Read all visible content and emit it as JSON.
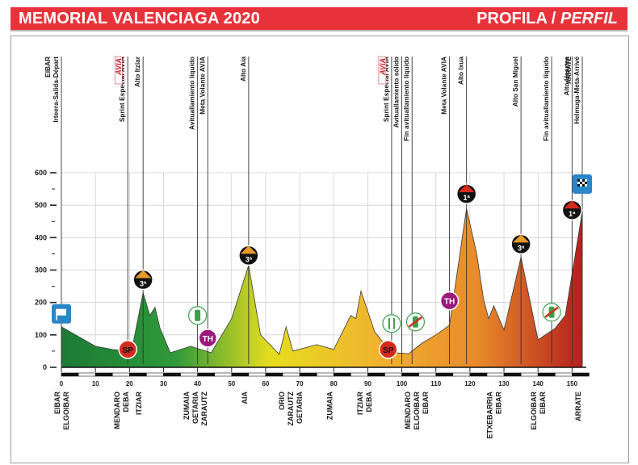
{
  "header": {
    "title": "MEMORIAL VALENCIAGA 2020",
    "right_main": "PROFILA / ",
    "right_italic": "PERFIL"
  },
  "chart_data": {
    "type": "area",
    "title": "MEMORIAL VALENCIAGA 2020",
    "xlabel": "",
    "ylabel": "",
    "xlim": [
      0,
      152
    ],
    "ylim": [
      0,
      600
    ],
    "x_ticks": [
      0,
      10,
      20,
      30,
      40,
      50,
      60,
      70,
      80,
      90,
      100,
      110,
      120,
      130,
      140,
      150
    ],
    "y_ticks": [
      0,
      100,
      200,
      300,
      400,
      500,
      600
    ],
    "grid": true,
    "profile": [
      {
        "x": 0,
        "y": 125
      },
      {
        "x": 5,
        "y": 95
      },
      {
        "x": 10,
        "y": 65
      },
      {
        "x": 15,
        "y": 55
      },
      {
        "x": 18,
        "y": 52
      },
      {
        "x": 21,
        "y": 70
      },
      {
        "x": 24,
        "y": 230
      },
      {
        "x": 26,
        "y": 160
      },
      {
        "x": 27.5,
        "y": 185
      },
      {
        "x": 29,
        "y": 120
      },
      {
        "x": 32,
        "y": 45
      },
      {
        "x": 38,
        "y": 65
      },
      {
        "x": 44,
        "y": 45
      },
      {
        "x": 50,
        "y": 150
      },
      {
        "x": 55,
        "y": 315
      },
      {
        "x": 58.5,
        "y": 100
      },
      {
        "x": 64,
        "y": 40
      },
      {
        "x": 66,
        "y": 125
      },
      {
        "x": 68,
        "y": 50
      },
      {
        "x": 75,
        "y": 70
      },
      {
        "x": 80,
        "y": 55
      },
      {
        "x": 85,
        "y": 160
      },
      {
        "x": 86.5,
        "y": 150
      },
      {
        "x": 88,
        "y": 235
      },
      {
        "x": 92,
        "y": 110
      },
      {
        "x": 95,
        "y": 70
      },
      {
        "x": 98,
        "y": 45
      },
      {
        "x": 102,
        "y": 42
      },
      {
        "x": 106,
        "y": 75
      },
      {
        "x": 110,
        "y": 100
      },
      {
        "x": 114,
        "y": 130
      },
      {
        "x": 119,
        "y": 490
      },
      {
        "x": 122,
        "y": 350
      },
      {
        "x": 124,
        "y": 210
      },
      {
        "x": 125.5,
        "y": 150
      },
      {
        "x": 127,
        "y": 190
      },
      {
        "x": 130,
        "y": 115
      },
      {
        "x": 135,
        "y": 340
      },
      {
        "x": 140,
        "y": 85
      },
      {
        "x": 145,
        "y": 120
      },
      {
        "x": 148,
        "y": 160
      },
      {
        "x": 153,
        "y": 480
      }
    ],
    "top_annotations": [
      {
        "km": 0,
        "lines": [
          "EIBAR",
          "Irteera-Salida-Départ"
        ]
      },
      {
        "km": 19.5,
        "lines": [
          "Sprint Especial AVIA"
        ],
        "logo": "AVIA"
      },
      {
        "km": 24,
        "lines": [
          "Alto Itziar"
        ]
      },
      {
        "km": 40,
        "lines": [
          "Avituallamiento líquido"
        ]
      },
      {
        "km": 43,
        "lines": [
          "Meta Volante AVIA"
        ]
      },
      {
        "km": 55,
        "lines": [
          "Alto Aia"
        ]
      },
      {
        "km": 97,
        "lines": [
          "Sprint Especial AVIA"
        ],
        "logo": "AVIA"
      },
      {
        "km": 100,
        "lines": [
          "Avituallamiento sólido"
        ]
      },
      {
        "km": 103,
        "lines": [
          "Fin avituallamiento líquido"
        ]
      },
      {
        "km": 114,
        "lines": [
          "Meta Volante AVIA"
        ]
      },
      {
        "km": 119,
        "lines": [
          "Alto Ixua"
        ]
      },
      {
        "km": 135,
        "lines": [
          "Alto San Miguel"
        ]
      },
      {
        "km": 144,
        "lines": [
          "Fin avituallamiento líquido"
        ]
      },
      {
        "km": 150,
        "lines": [
          "Alto Usartza"
        ]
      },
      {
        "km": 153,
        "lines": [
          "ARRATE",
          "Helmuga-Meta-Arrivé"
        ]
      }
    ],
    "bottom_places": [
      {
        "km": 0,
        "lines": [
          "EIBAR",
          "ELGOIBAR"
        ]
      },
      {
        "km": 17.5,
        "lines": [
          "MENDARO",
          "DEBA"
        ]
      },
      {
        "km": 24,
        "lines": [
          "ITZIAR"
        ]
      },
      {
        "km": 38,
        "lines": [
          "ZUMAIA",
          "GETARIA",
          "ZARAUTZ"
        ]
      },
      {
        "km": 55,
        "lines": [
          "AIA"
        ]
      },
      {
        "km": 66,
        "lines": [
          "ORIO",
          "ZARAUTZ",
          "GETARIA"
        ]
      },
      {
        "km": 80,
        "lines": [
          "ZUMAIA"
        ]
      },
      {
        "km": 89,
        "lines": [
          "ITZIAR",
          "DEBA"
        ]
      },
      {
        "km": 103,
        "lines": [
          "MENDARO",
          "ELGOIBAR",
          "EIBAR"
        ]
      },
      {
        "km": 127,
        "lines": [
          "ETXEBARRIA",
          "EIBAR"
        ]
      },
      {
        "km": 140,
        "lines": [
          "ELGOIBAR",
          "EIBAR"
        ]
      },
      {
        "km": 153,
        "lines": [
          "ARRATE"
        ]
      }
    ],
    "markers": [
      {
        "km": 0,
        "alt": 165,
        "type": "start-flag"
      },
      {
        "km": 19.5,
        "alt": 55,
        "type": "sprint",
        "label": "SP"
      },
      {
        "km": 24,
        "alt": 270,
        "type": "climb-3",
        "label": "3ª"
      },
      {
        "km": 40,
        "alt": 160,
        "type": "bottle"
      },
      {
        "km": 43,
        "alt": 90,
        "type": "intermediate",
        "label": "TH"
      },
      {
        "km": 55,
        "alt": 345,
        "type": "climb-3",
        "label": "3ª"
      },
      {
        "km": 96,
        "alt": 55,
        "type": "sprint",
        "label": "SP"
      },
      {
        "km": 97,
        "alt": 135,
        "type": "food"
      },
      {
        "km": 104,
        "alt": 140,
        "type": "bottle-end"
      },
      {
        "km": 114,
        "alt": 205,
        "type": "intermediate",
        "label": "TH"
      },
      {
        "km": 119,
        "alt": 535,
        "type": "climb-1",
        "label": "1ª"
      },
      {
        "km": 135,
        "alt": 380,
        "type": "climb-3",
        "label": "3ª"
      },
      {
        "km": 144,
        "alt": 170,
        "type": "bottle-end"
      },
      {
        "km": 150,
        "alt": 485,
        "type": "climb-1",
        "label": "1ª"
      },
      {
        "km": 153,
        "alt": 565,
        "type": "finish-flag"
      }
    ],
    "colors": {
      "start": "#1c7a35",
      "mid": "#e6dd1e",
      "orange": "#e88a2a",
      "end": "#b5201e"
    }
  }
}
